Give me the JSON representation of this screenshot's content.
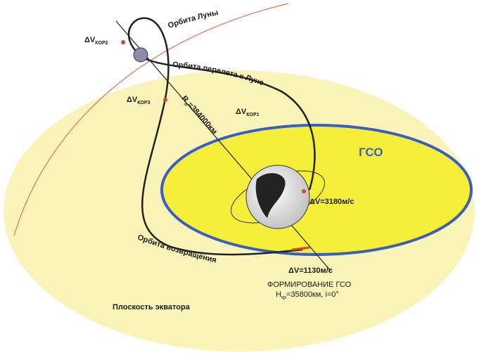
{
  "labels": {
    "moon_orbit": "Орбита Луны",
    "transfer_orbit": "Орбита перелета к Луне",
    "return_orbit": "Орбита возвращения",
    "gso": "ГСО",
    "equator_plane": "Плоскость экватора",
    "dv_cor2": {
      "main": "ΔV",
      "sub": "КОР2"
    },
    "dv_cor3": {
      "main": "ΔV",
      "sub": "КОР3"
    },
    "dv_cor1": {
      "main": "ΔV",
      "sub": "КОР1"
    },
    "radius": {
      "main": "R",
      "sub": "л",
      "rest": "=384000км"
    },
    "dv_3180": "ΔV=3180м/с",
    "dv_1130": "ΔV=1130м/с",
    "gso_forming": "ФОРМИРОВАНИЕ ГСО",
    "gso_params": {
      "main": "H",
      "sub": "кр",
      "rest": "=35800км, i=0°"
    }
  }
}
